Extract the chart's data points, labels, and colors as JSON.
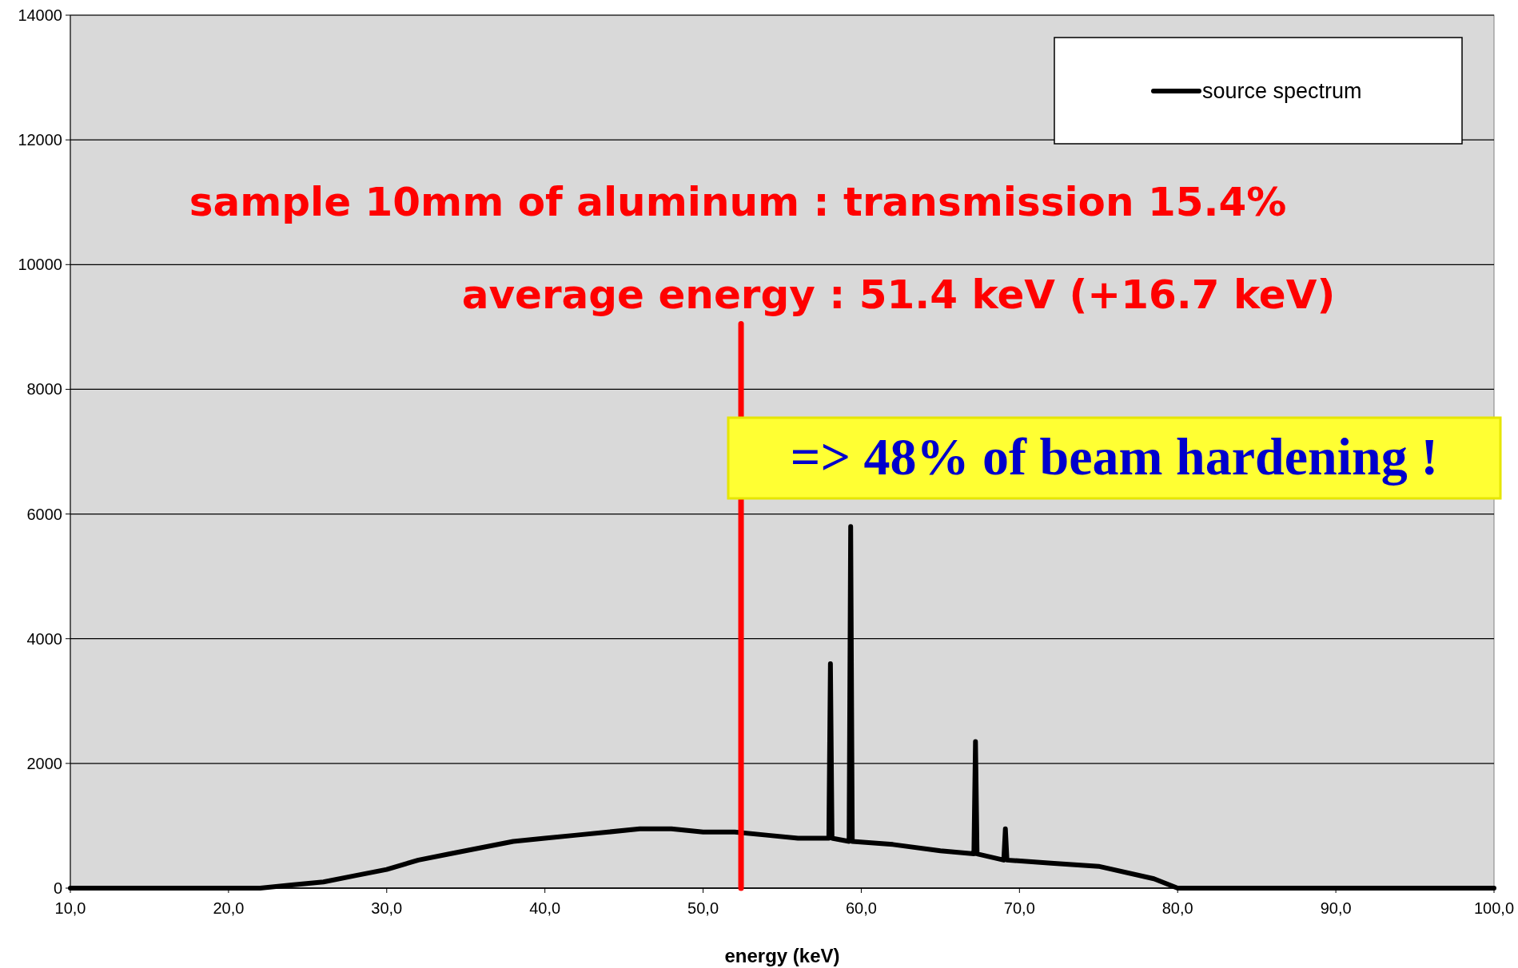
{
  "chart_data": {
    "type": "line",
    "xlabel": "energy (keV)",
    "xlim": [
      10,
      100
    ],
    "xticks": [
      {
        "value": 10,
        "label": "10,0"
      },
      {
        "value": 20,
        "label": "20,0"
      },
      {
        "value": 30,
        "label": "30,0"
      },
      {
        "value": 40,
        "label": "40,0"
      },
      {
        "value": 50,
        "label": "50,0"
      },
      {
        "value": 60,
        "label": "60,0"
      },
      {
        "value": 70,
        "label": "70,0"
      },
      {
        "value": 80,
        "label": "80,0"
      },
      {
        "value": 90,
        "label": "90,0"
      },
      {
        "value": 100,
        "label": "100,0"
      }
    ],
    "ylim": [
      0,
      14000
    ],
    "yticks": [
      0,
      2000,
      4000,
      6000,
      8000,
      10000,
      12000,
      14000
    ],
    "grid": "y",
    "legend": "top right",
    "line_style": "solid",
    "marker": "none",
    "series": [
      {
        "name": "source spectrum",
        "color": "#000000",
        "x": [
          10,
          20,
          22,
          24,
          26,
          28,
          30,
          32,
          34,
          36,
          38,
          40,
          42,
          44,
          46,
          48,
          50,
          52,
          54,
          56,
          57.95,
          58.05,
          58.15,
          59.23,
          59.33,
          59.43,
          62,
          65,
          67.12,
          67.22,
          67.32,
          69.01,
          69.11,
          69.21,
          72,
          75,
          78.5,
          80,
          100
        ],
        "values": [
          0,
          0,
          0,
          50,
          100,
          200,
          300,
          450,
          550,
          650,
          750,
          800,
          850,
          900,
          950,
          950,
          900,
          900,
          850,
          800,
          800,
          3600,
          800,
          750,
          5800,
          750,
          700,
          600,
          550,
          2350,
          550,
          450,
          950,
          450,
          400,
          350,
          150,
          0,
          0
        ]
      },
      {
        "color": "#ff0000",
        "x": [
          52.4,
          52.4
        ],
        "values": [
          0,
          9050
        ]
      }
    ],
    "annotations": [
      "sample 10mm of aluminum : transmission 15.4%",
      "average energy : 51.4 keV (+16.7 keV)",
      "=> 48% of beam hardening !"
    ]
  }
}
